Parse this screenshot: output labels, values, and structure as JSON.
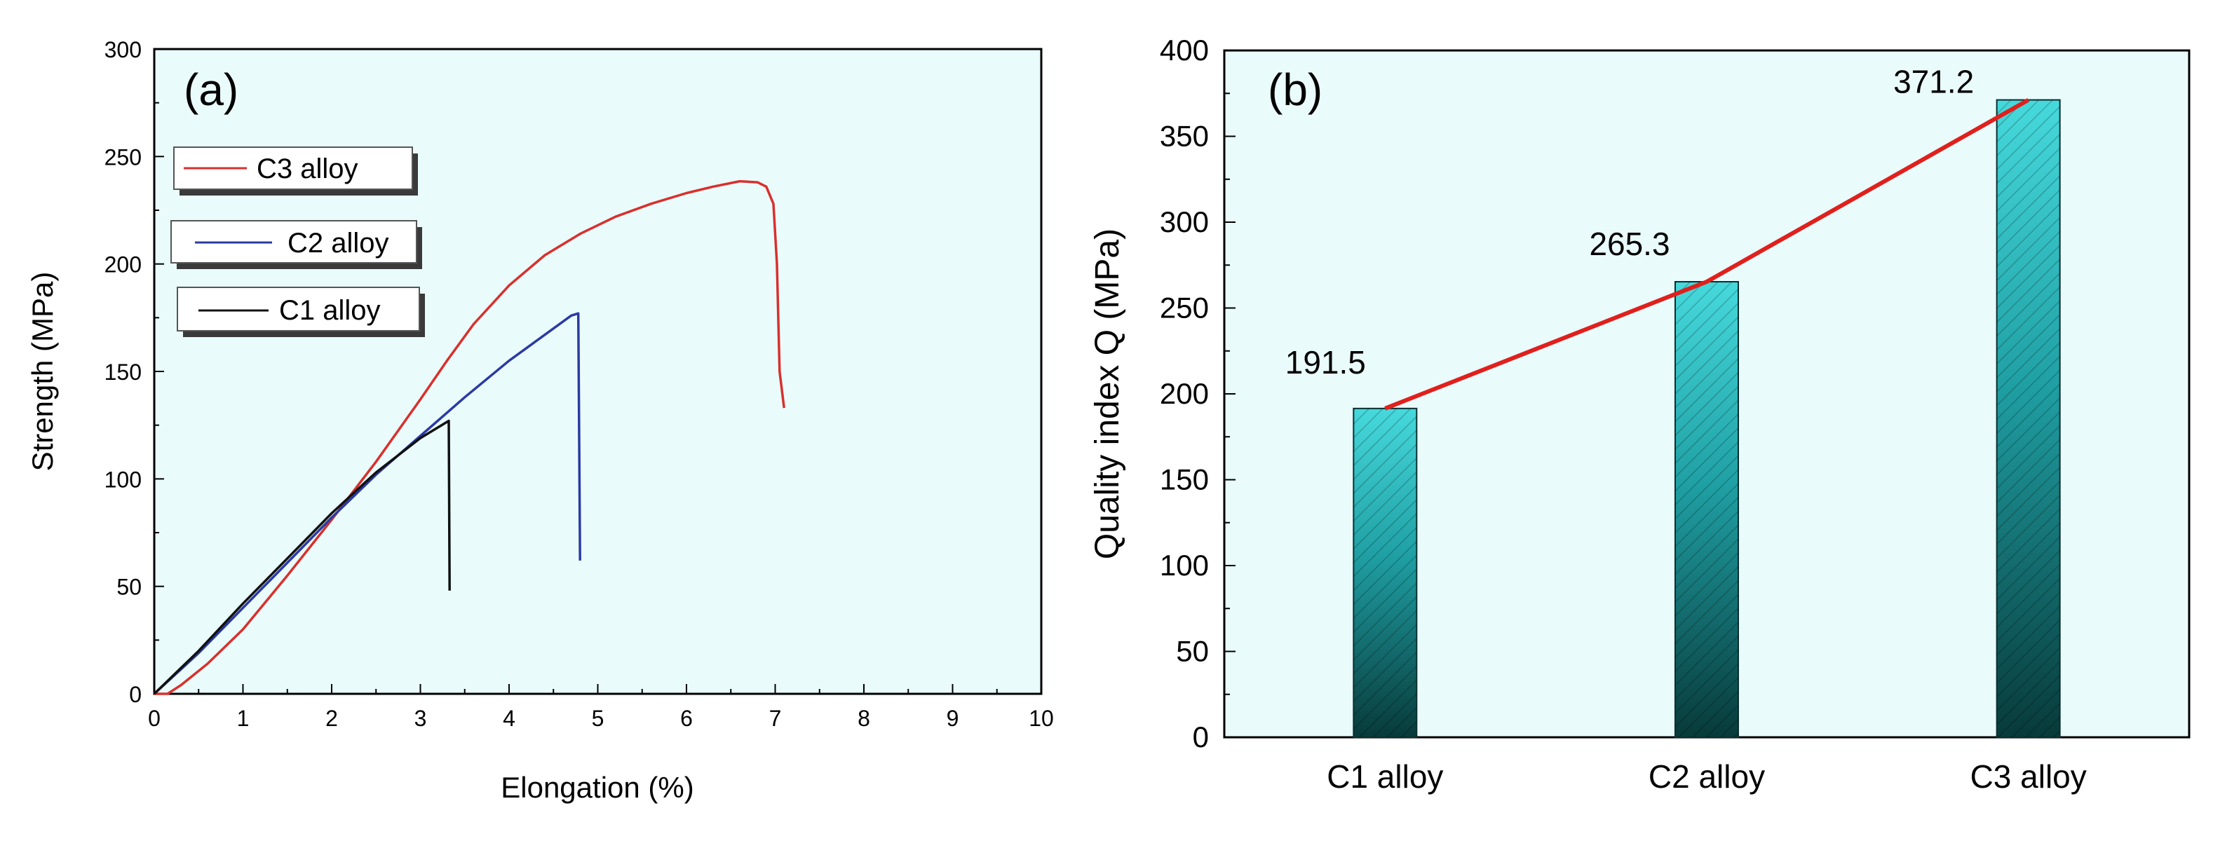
{
  "chart_data": [
    {
      "type": "line",
      "panel_label": "(a)",
      "xlabel": "Elongation (%)",
      "ylabel": "Strength (MPa)",
      "xlim": [
        0,
        10
      ],
      "ylim": [
        0,
        300
      ],
      "xticks": [
        0,
        1,
        2,
        3,
        4,
        5,
        6,
        7,
        8,
        9,
        10
      ],
      "yticks": [
        0,
        50,
        100,
        150,
        200,
        250,
        300
      ],
      "background": "#eafbfc",
      "series": [
        {
          "name": "C3 alloy",
          "color": "#d9302c",
          "points": [
            [
              0,
              0
            ],
            [
              0.15,
              0
            ],
            [
              0.3,
              4
            ],
            [
              0.6,
              14
            ],
            [
              1.0,
              30
            ],
            [
              1.5,
              55
            ],
            [
              2.0,
              81
            ],
            [
              2.5,
              108
            ],
            [
              3.0,
              137
            ],
            [
              3.3,
              155
            ],
            [
              3.6,
              172
            ],
            [
              4.0,
              190
            ],
            [
              4.4,
              204
            ],
            [
              4.8,
              214
            ],
            [
              5.2,
              222
            ],
            [
              5.6,
              228
            ],
            [
              6.0,
              233
            ],
            [
              6.3,
              236
            ],
            [
              6.6,
              238.5
            ],
            [
              6.8,
              238
            ],
            [
              6.9,
              236
            ],
            [
              6.98,
              228
            ],
            [
              7.02,
              200
            ],
            [
              7.05,
              150
            ],
            [
              7.1,
              133
            ]
          ]
        },
        {
          "name": "C2 alloy",
          "color": "#2b3aa3",
          "points": [
            [
              0,
              0
            ],
            [
              0.5,
              19
            ],
            [
              1.0,
              40
            ],
            [
              1.5,
              61
            ],
            [
              2.0,
              82
            ],
            [
              2.5,
              102
            ],
            [
              3.0,
              120
            ],
            [
              3.5,
              138
            ],
            [
              4.0,
              155
            ],
            [
              4.4,
              167
            ],
            [
              4.7,
              176
            ],
            [
              4.78,
              177
            ],
            [
              4.8,
              62
            ]
          ]
        },
        {
          "name": "C1 alloy",
          "color": "#111111",
          "points": [
            [
              0,
              0
            ],
            [
              0.5,
              20
            ],
            [
              1.0,
              42
            ],
            [
              1.5,
              63
            ],
            [
              2.0,
              84
            ],
            [
              2.5,
              103
            ],
            [
              3.0,
              119
            ],
            [
              3.32,
              127
            ],
            [
              3.33,
              48
            ]
          ]
        }
      ],
      "legend_order": [
        "C3 alloy",
        "C2 alloy",
        "C1 alloy"
      ],
      "legend_placement": "upper-left, stacked boxes"
    },
    {
      "type": "bar",
      "panel_label": "(b)",
      "xlabel": "",
      "ylabel": "Quality index Q (MPa)",
      "ylim": [
        0,
        400
      ],
      "yticks": [
        0,
        50,
        100,
        150,
        200,
        250,
        300,
        350,
        400
      ],
      "background": "#eafbfc",
      "categories": [
        "C1 alloy",
        "C2 alloy",
        "C3 alloy"
      ],
      "values": [
        191.5,
        265.3,
        371.2
      ],
      "value_labels": [
        "191.5",
        "265.3",
        "371.2"
      ],
      "bar_color_top": "#46d9dc",
      "bar_color_bottom": "#083a3a",
      "trend_line": {
        "color": "#e0201c"
      }
    }
  ]
}
